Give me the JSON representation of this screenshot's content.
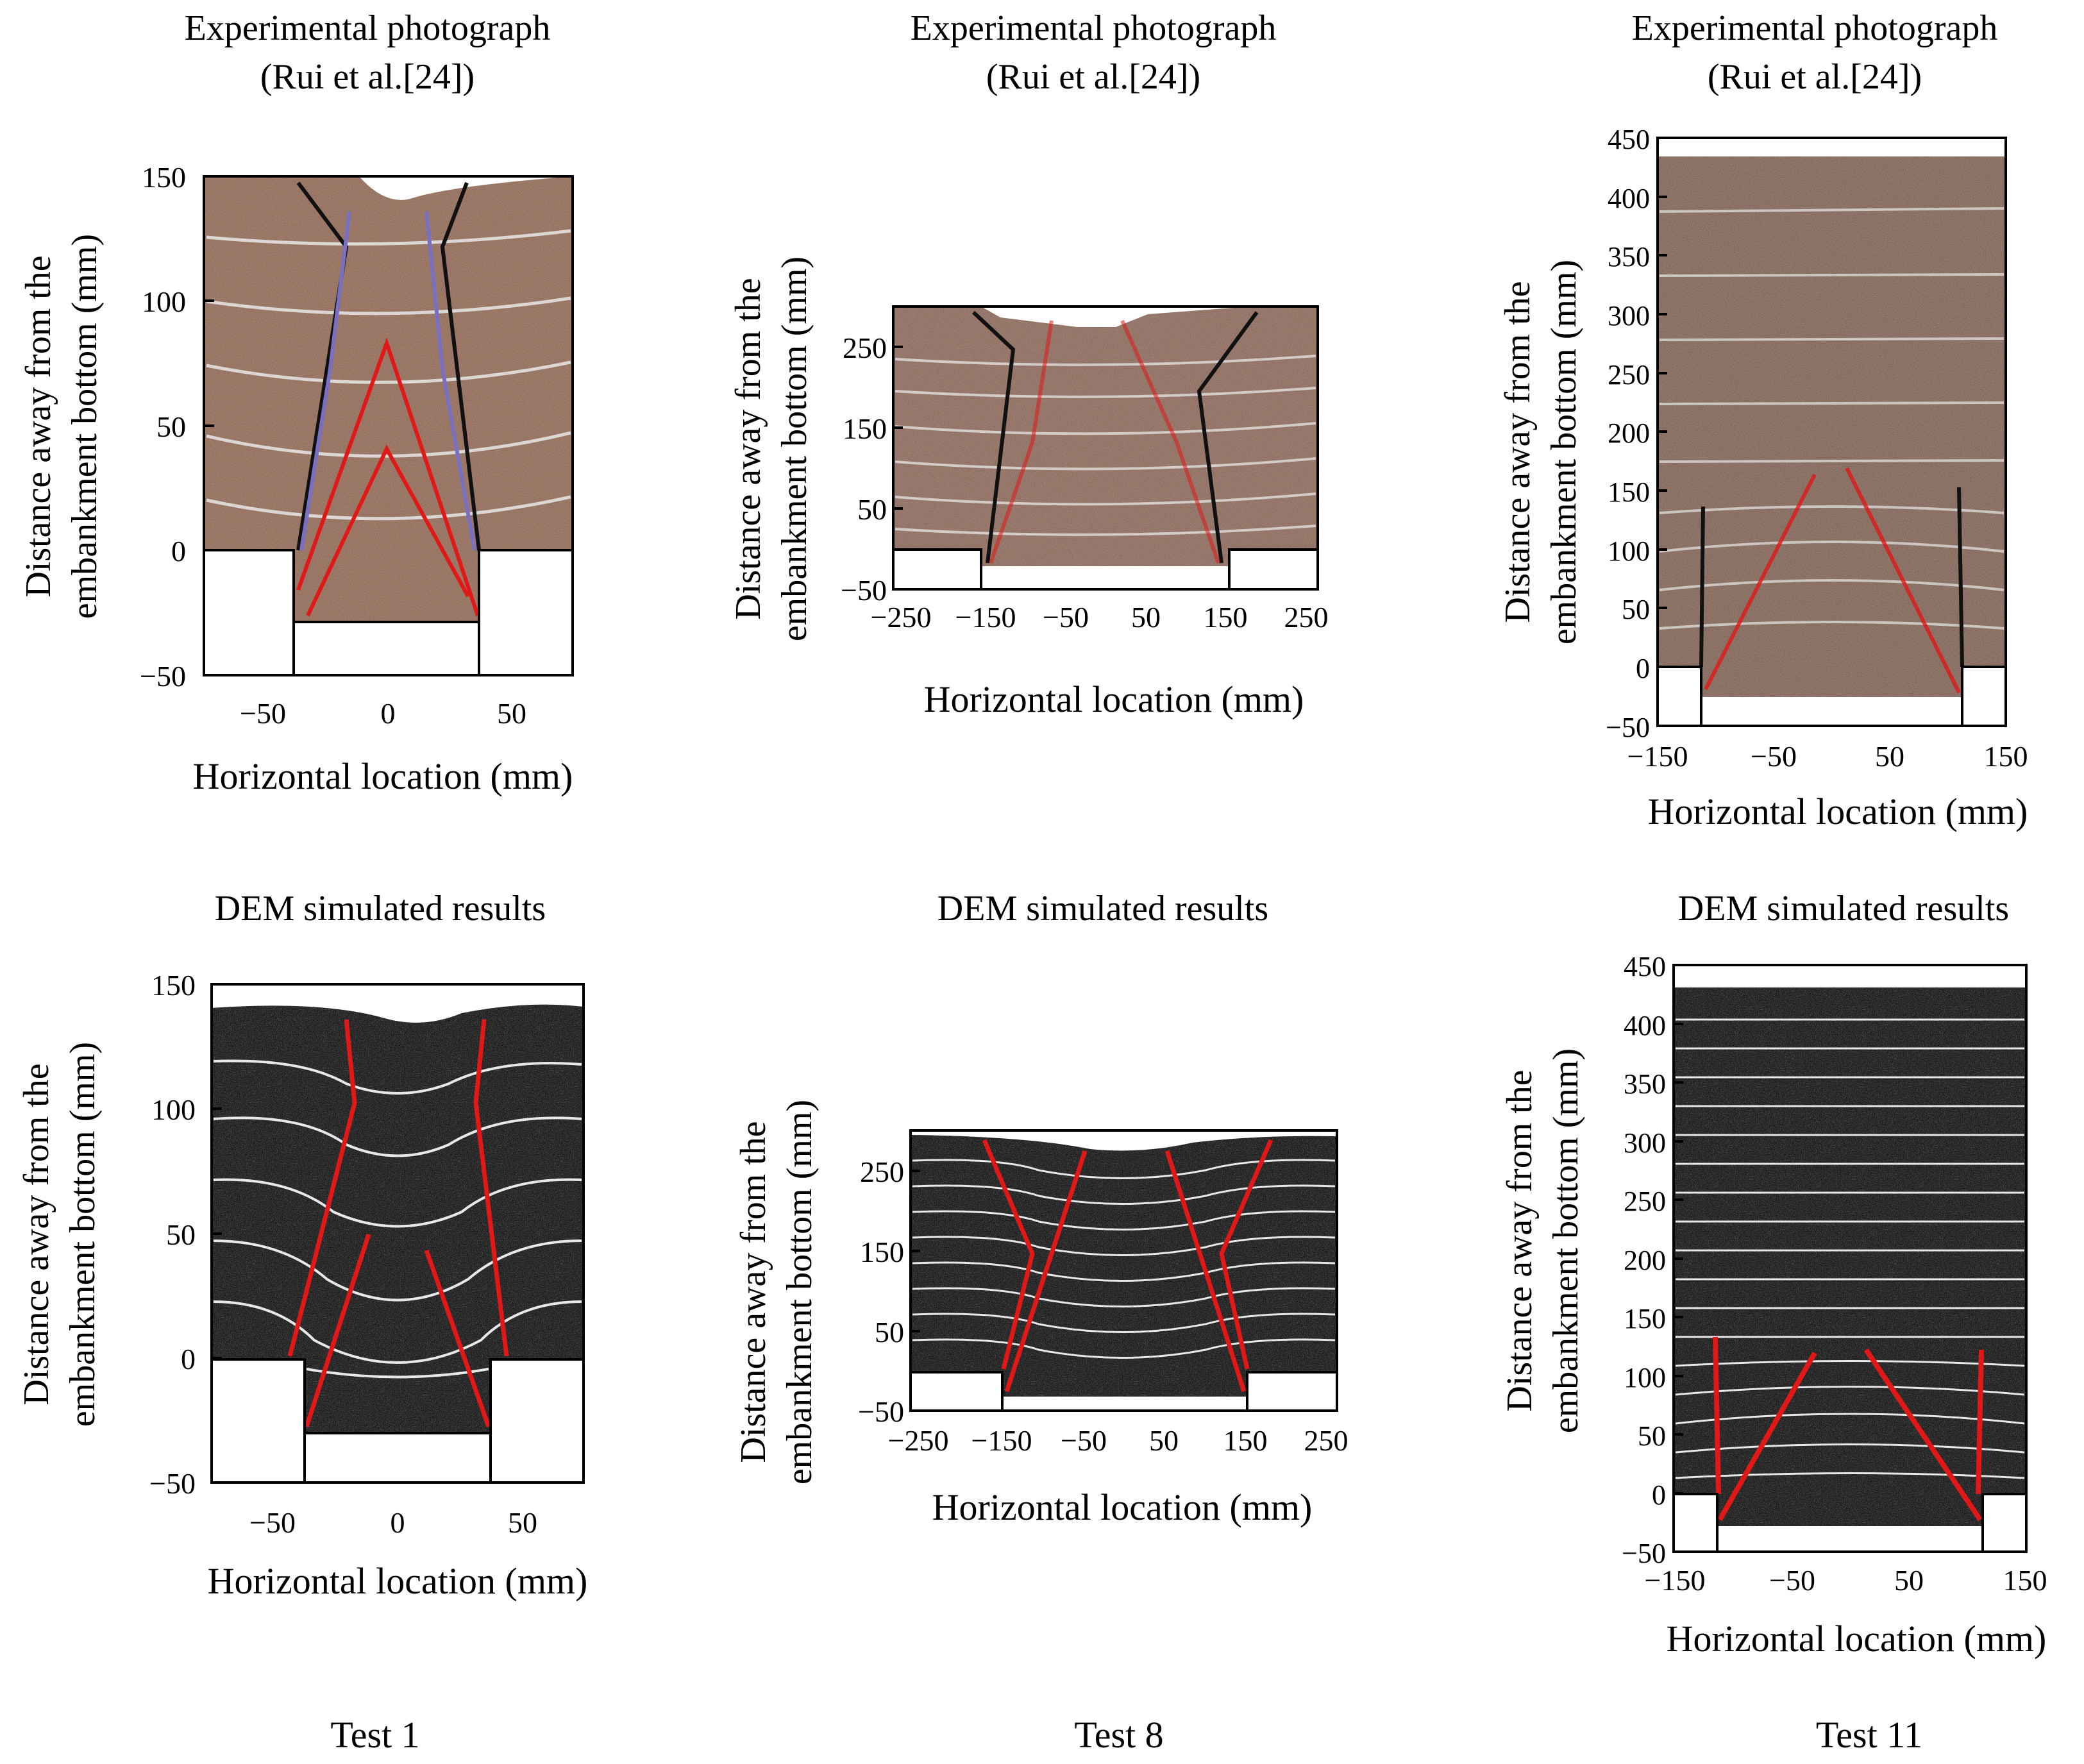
{
  "colors": {
    "soil_photo": "#8f6a58",
    "soil_photo_dark": "#7a5848",
    "dem": "#1c1c1c",
    "layer_line": "#e8e8e8",
    "shear_red": "#e01818",
    "shear_black": "#111111",
    "shear_blue": "#7a6fc0"
  },
  "labels": {
    "photo_title_1": "Experimental photograph",
    "photo_title_2": "(Rui et al.[24])",
    "dem_title": "DEM simulated results",
    "ylabel_line1": "Distance away from the",
    "ylabel_line2": "embankment bottom (mm)",
    "xlabel": "Horizontal location (mm)"
  },
  "tests": [
    {
      "name": "Test 1",
      "x_ticks": [
        "−50",
        "0",
        "50"
      ],
      "y_ticks": [
        "−50",
        "0",
        "50",
        "100",
        "150"
      ]
    },
    {
      "name": "Test 8",
      "x_ticks": [
        "−250",
        "−150",
        "−50",
        "50",
        "150",
        "250"
      ],
      "y_ticks": [
        "−50",
        "50",
        "150",
        "250"
      ]
    },
    {
      "name": "Test 11",
      "x_ticks": [
        "−150",
        "−50",
        "50",
        "150"
      ],
      "y_ticks": [
        "−50",
        "0",
        "50",
        "100",
        "150",
        "200",
        "250",
        "300",
        "350",
        "400",
        "450"
      ]
    }
  ],
  "chart_data": [
    {
      "panel": "Test 1 photograph",
      "type": "other",
      "xlim": [
        -75,
        75
      ],
      "ylim": [
        -50,
        150
      ],
      "trapdoor_mm": [
        -37.5,
        37.5
      ],
      "trapdoor_depth_mm": -30,
      "embankment_height_mm": 150
    },
    {
      "panel": "Test 8 photograph",
      "type": "other",
      "xlim": [
        -270,
        270
      ],
      "ylim": [
        -50,
        300
      ],
      "trapdoor_mm": [
        -150,
        150
      ],
      "embankment_height_mm": 300
    },
    {
      "panel": "Test 11 photograph",
      "type": "other",
      "xlim": [
        -150,
        150
      ],
      "ylim": [
        -50,
        450
      ],
      "trapdoor_mm": [
        -112.5,
        112.5
      ],
      "embankment_height_mm": 435
    },
    {
      "panel": "Test 1 DEM",
      "type": "other",
      "xlim": [
        -75,
        75
      ],
      "ylim": [
        -50,
        150
      ],
      "trapdoor_mm": [
        -37.5,
        37.5
      ],
      "embankment_height_mm": 140
    },
    {
      "panel": "Test 8 DEM",
      "type": "other",
      "xlim": [
        -270,
        270
      ],
      "ylim": [
        -50,
        300
      ],
      "trapdoor_mm": [
        -150,
        150
      ],
      "embankment_height_mm": 290
    },
    {
      "panel": "Test 11 DEM",
      "type": "other",
      "xlim": [
        -150,
        150
      ],
      "ylim": [
        -50,
        450
      ],
      "trapdoor_mm": [
        -112.5,
        112.5
      ],
      "embankment_height_mm": 430
    }
  ]
}
